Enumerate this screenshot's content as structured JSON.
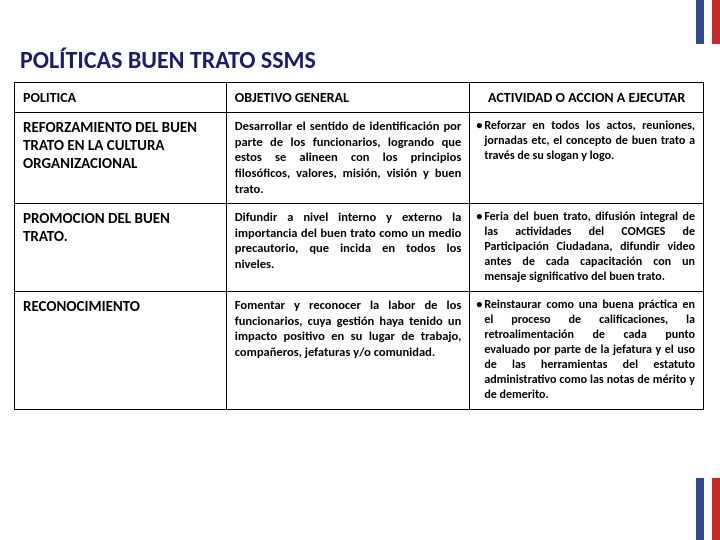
{
  "title": "POLÍTICAS BUEN TRATO SSMS",
  "title_color": "#1B1B6F",
  "headers": {
    "c1": "POLITICA",
    "c2": "OBJETIVO GENERAL",
    "c3": "ACTIVIDAD O ACCION A EJECUTAR"
  },
  "rows": [
    {
      "politica": "REFORZAMIENTO DEL BUEN TRATO EN LA CULTURA ORGANIZACIONAL",
      "objetivo": "Desarrollar el sentido de identificación por parte de los funcionarios, logrando que estos se alineen con los principios filosóficos, valores, misión, visión y buen trato.",
      "accion": "Reforzar en todos los actos, reuniones, jornadas etc, el concepto de buen trato a través de su slogan y logo."
    },
    {
      "politica": "PROMOCION DEL BUEN TRATO.",
      "objetivo": "Difundir a nivel interno y externo la importancia del buen trato como un medio precautorio, que incida en todos los niveles.",
      "accion": "Feria del buen trato, difusión integral de las actividades del COMGES de Participación Ciudadana, difundir video antes de cada capacitación con un mensaje significativo del buen trato."
    },
    {
      "politica": "RECONOCIMIENTO",
      "objetivo": "Fomentar y reconocer la labor de los funcionarios, cuya gestión haya tenido un impacto positivo en su lugar de trabajo, compañeros, jefaturas y/o comunidad.",
      "accion": "Reinstaurar como una buena práctica en el proceso de calificaciones, la retroalimentación de cada punto evaluado por parte de la jefatura y el uso de las herramientas del estatuto administrativo como las notas de mérito y de demerito."
    }
  ]
}
